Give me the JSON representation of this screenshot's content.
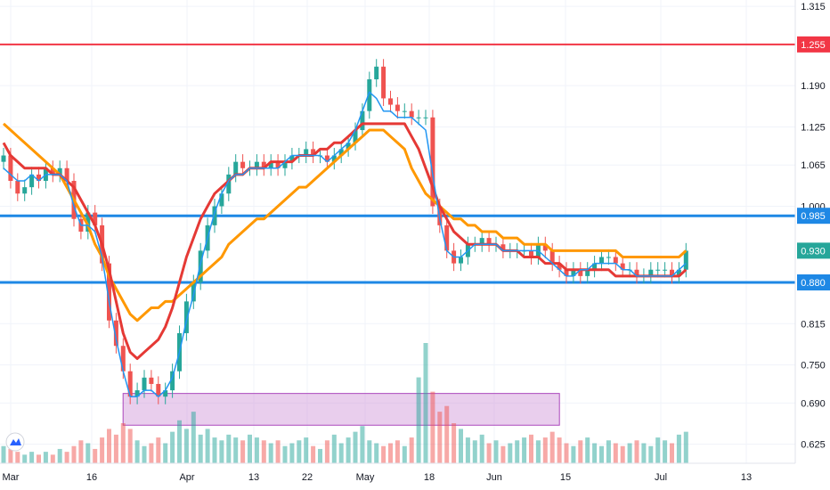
{
  "chart_data": {
    "type": "candlestick",
    "title": "",
    "y_axis": {
      "min": 0.595,
      "max": 1.325,
      "ticks": [
        "1.315",
        "1.255",
        "1.190",
        "1.125",
        "1.065",
        "1.000",
        "0.985",
        "0.930",
        "0.880",
        "0.815",
        "0.750",
        "0.690",
        "0.625"
      ],
      "tick_values": [
        1.315,
        1.19,
        1.125,
        1.065,
        1.0,
        0.815,
        0.75,
        0.69,
        0.625
      ]
    },
    "x_axis": {
      "labels": [
        "Mar",
        "16",
        "Apr",
        "13",
        "22",
        "May",
        "18",
        "Jun",
        "15",
        "Jul",
        "13"
      ]
    },
    "price_labels": [
      {
        "value": 1.255,
        "text": "1.255",
        "color": "#f23645"
      },
      {
        "value": 0.985,
        "text": "0.985",
        "color": "#1e88e5"
      },
      {
        "value": 0.93,
        "text": "0.930",
        "color": "#26a69a"
      },
      {
        "value": 0.88,
        "text": "0.880",
        "color": "#1e88e5"
      }
    ],
    "horizontal_lines": [
      {
        "value": 1.255,
        "color": "#f23645"
      },
      {
        "value": 0.985,
        "color": "#1e88e5"
      },
      {
        "value": 0.88,
        "color": "#1e88e5"
      }
    ],
    "zone": {
      "from_day": 18,
      "to_day": 78,
      "low": 0.655,
      "high": 0.705,
      "color": "#ce93d8"
    },
    "arrow": {
      "day": 122,
      "from": 0.885,
      "to": 0.985
    },
    "close": [
      1.08,
      1.04,
      1.02,
      1.03,
      1.05,
      1.04,
      1.06,
      1.05,
      1.06,
      1.04,
      0.98,
      0.96,
      0.99,
      0.97,
      0.91,
      0.82,
      0.78,
      0.74,
      0.7,
      0.71,
      0.73,
      0.72,
      0.7,
      0.71,
      0.74,
      0.8,
      0.85,
      0.88,
      0.93,
      0.97,
      1.0,
      1.02,
      1.05,
      1.07,
      1.06,
      1.06,
      1.07,
      1.06,
      1.07,
      1.06,
      1.07,
      1.08,
      1.08,
      1.09,
      1.08,
      1.08,
      1.07,
      1.08,
      1.09,
      1.1,
      1.12,
      1.15,
      1.2,
      1.22,
      1.17,
      1.16,
      1.15,
      1.15,
      1.14,
      1.14,
      1.14,
      1.0,
      0.97,
      0.93,
      0.91,
      0.92,
      0.94,
      0.94,
      0.95,
      0.94,
      0.94,
      0.93,
      0.93,
      0.93,
      0.93,
      0.92,
      0.94,
      0.93,
      0.91,
      0.9,
      0.89,
      0.9,
      0.89,
      0.9,
      0.91,
      0.92,
      0.92,
      0.91,
      0.9,
      0.9,
      0.89,
      0.89,
      0.9,
      0.9,
      0.9,
      0.89,
      0.9,
      0.93
    ],
    "ema_fast": [
      1.06,
      1.05,
      1.04,
      1.04,
      1.05,
      1.04,
      1.05,
      1.05,
      1.05,
      1.04,
      1.0,
      0.97,
      0.97,
      0.96,
      0.92,
      0.85,
      0.79,
      0.74,
      0.7,
      0.7,
      0.71,
      0.71,
      0.7,
      0.71,
      0.73,
      0.77,
      0.82,
      0.86,
      0.91,
      0.95,
      0.99,
      1.02,
      1.04,
      1.05,
      1.05,
      1.06,
      1.06,
      1.06,
      1.06,
      1.06,
      1.07,
      1.08,
      1.08,
      1.08,
      1.08,
      1.08,
      1.07,
      1.08,
      1.09,
      1.1,
      1.12,
      1.15,
      1.18,
      1.17,
      1.15,
      1.15,
      1.14,
      1.14,
      1.14,
      1.13,
      1.12,
      1.05,
      0.98,
      0.93,
      0.92,
      0.92,
      0.93,
      0.94,
      0.94,
      0.94,
      0.94,
      0.93,
      0.93,
      0.93,
      0.93,
      0.93,
      0.93,
      0.92,
      0.91,
      0.9,
      0.89,
      0.89,
      0.9,
      0.9,
      0.91,
      0.91,
      0.91,
      0.91,
      0.9,
      0.9,
      0.89,
      0.89,
      0.89,
      0.89,
      0.89,
      0.89,
      0.9,
      0.91
    ],
    "ema_mid": [
      1.1,
      1.08,
      1.07,
      1.06,
      1.06,
      1.06,
      1.06,
      1.05,
      1.05,
      1.04,
      1.03,
      1.01,
      0.99,
      0.97,
      0.94,
      0.9,
      0.85,
      0.8,
      0.77,
      0.76,
      0.77,
      0.78,
      0.79,
      0.81,
      0.84,
      0.88,
      0.92,
      0.95,
      0.98,
      1.0,
      1.02,
      1.03,
      1.04,
      1.05,
      1.05,
      1.06,
      1.06,
      1.06,
      1.07,
      1.07,
      1.07,
      1.07,
      1.08,
      1.08,
      1.08,
      1.09,
      1.09,
      1.1,
      1.1,
      1.11,
      1.12,
      1.13,
      1.13,
      1.13,
      1.13,
      1.13,
      1.13,
      1.13,
      1.11,
      1.09,
      1.06,
      1.03,
      1.0,
      0.98,
      0.96,
      0.95,
      0.94,
      0.94,
      0.94,
      0.94,
      0.94,
      0.93,
      0.93,
      0.93,
      0.92,
      0.92,
      0.92,
      0.91,
      0.91,
      0.91,
      0.9,
      0.9,
      0.9,
      0.9,
      0.9,
      0.9,
      0.9,
      0.89,
      0.89,
      0.89,
      0.89,
      0.89,
      0.89,
      0.89,
      0.89,
      0.89,
      0.89,
      0.9
    ],
    "ema_slow": [
      1.13,
      1.12,
      1.11,
      1.1,
      1.09,
      1.08,
      1.07,
      1.06,
      1.05,
      1.03,
      1.01,
      0.99,
      0.97,
      0.94,
      0.92,
      0.89,
      0.87,
      0.85,
      0.83,
      0.82,
      0.83,
      0.84,
      0.84,
      0.85,
      0.85,
      0.86,
      0.87,
      0.88,
      0.89,
      0.9,
      0.91,
      0.92,
      0.94,
      0.95,
      0.96,
      0.97,
      0.98,
      0.98,
      0.99,
      1.0,
      1.01,
      1.02,
      1.03,
      1.03,
      1.04,
      1.05,
      1.06,
      1.07,
      1.08,
      1.09,
      1.1,
      1.11,
      1.12,
      1.12,
      1.12,
      1.11,
      1.1,
      1.09,
      1.06,
      1.04,
      1.02,
      1.01,
      1.0,
      0.99,
      0.98,
      0.98,
      0.97,
      0.97,
      0.96,
      0.96,
      0.96,
      0.95,
      0.95,
      0.95,
      0.94,
      0.94,
      0.94,
      0.94,
      0.93,
      0.93,
      0.93,
      0.93,
      0.93,
      0.93,
      0.93,
      0.93,
      0.93,
      0.93,
      0.92,
      0.92,
      0.92,
      0.92,
      0.92,
      0.92,
      0.92,
      0.92,
      0.92,
      0.93
    ],
    "volume": [
      6,
      5,
      4,
      3,
      4,
      3,
      4,
      3,
      5,
      4,
      6,
      8,
      7,
      5,
      9,
      12,
      10,
      14,
      12,
      8,
      6,
      7,
      9,
      7,
      11,
      15,
      12,
      18,
      10,
      12,
      9,
      8,
      10,
      9,
      8,
      10,
      9,
      8,
      7,
      8,
      6,
      7,
      8,
      9,
      6,
      5,
      8,
      10,
      7,
      9,
      11,
      13,
      8,
      7,
      6,
      7,
      8,
      6,
      9,
      30,
      42,
      25,
      18,
      20,
      14,
      12,
      9,
      8,
      10,
      7,
      8,
      6,
      7,
      8,
      9,
      10,
      8,
      9,
      11,
      9,
      7,
      6,
      8,
      9,
      7,
      6,
      8,
      7,
      6,
      7,
      8,
      7,
      6,
      9,
      8,
      7,
      10,
      11
    ]
  }
}
